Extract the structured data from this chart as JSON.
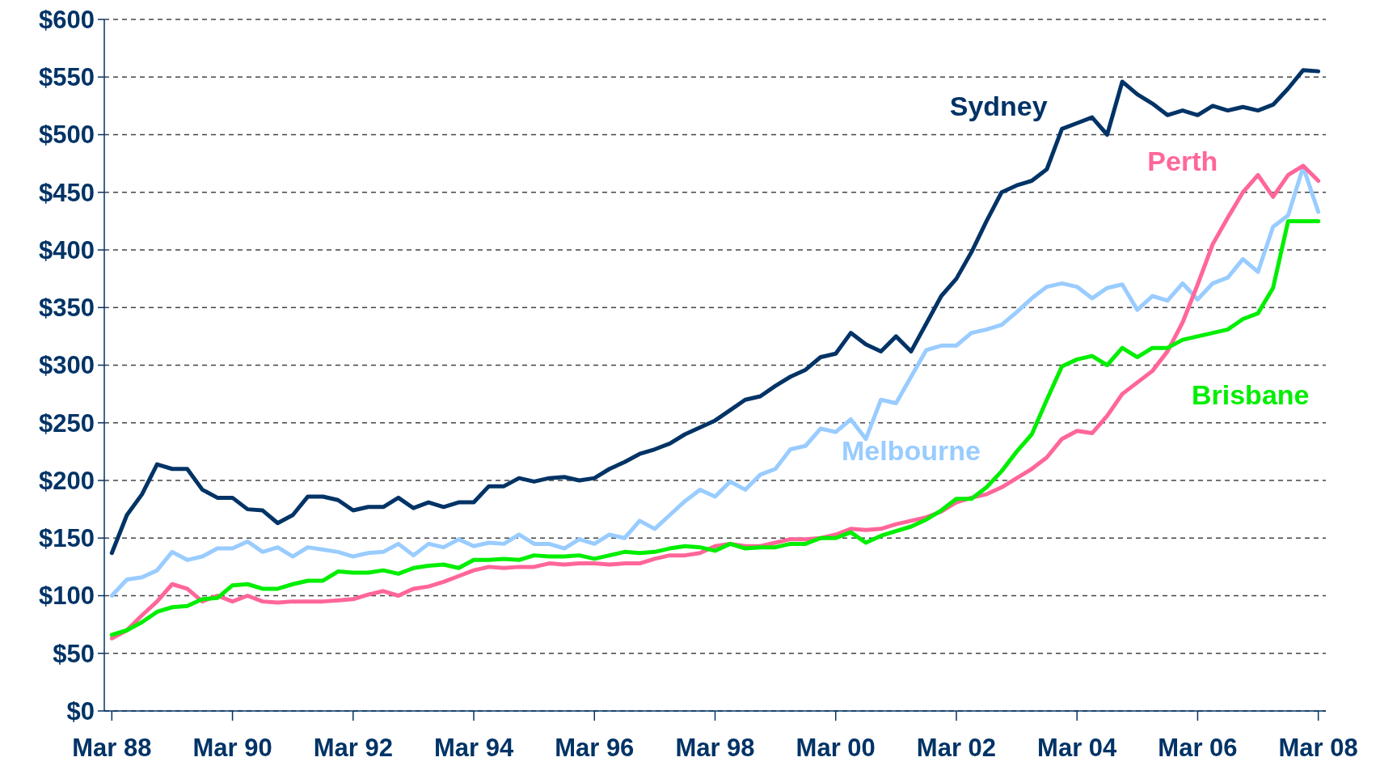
{
  "chart_data": {
    "type": "line",
    "categories": [
      "Mar 88",
      null,
      null,
      null,
      null,
      null,
      null,
      null,
      "Mar 90",
      null,
      null,
      null,
      null,
      null,
      null,
      null,
      "Mar 92",
      null,
      null,
      null,
      null,
      null,
      null,
      null,
      "Mar 94",
      null,
      null,
      null,
      null,
      null,
      null,
      null,
      "Mar 96",
      null,
      null,
      null,
      null,
      null,
      null,
      null,
      "Mar 98",
      null,
      null,
      null,
      null,
      null,
      null,
      null,
      "Mar 00",
      null,
      null,
      null,
      null,
      null,
      null,
      null,
      "Mar 02",
      null,
      null,
      null,
      null,
      null,
      null,
      null,
      "Mar 04",
      null,
      null,
      null,
      null,
      null,
      null,
      null,
      "Mar 06",
      null,
      null,
      null,
      null,
      null,
      null,
      null,
      "Mar 08"
    ],
    "ylim": [
      0,
      600
    ],
    "yticks": [
      {
        "value": 0,
        "label": "$0"
      },
      {
        "value": 50,
        "label": "$50"
      },
      {
        "value": 100,
        "label": "$100"
      },
      {
        "value": 150,
        "label": "$150"
      },
      {
        "value": 200,
        "label": "$200"
      },
      {
        "value": 250,
        "label": "$250"
      },
      {
        "value": 300,
        "label": "$300"
      },
      {
        "value": 350,
        "label": "$350"
      },
      {
        "value": 400,
        "label": "$400"
      },
      {
        "value": 450,
        "label": "$450"
      },
      {
        "value": 500,
        "label": "$500"
      },
      {
        "value": 550,
        "label": "$550"
      },
      {
        "value": 600,
        "label": "$600"
      }
    ],
    "grid": "y",
    "marker": "none",
    "line_style": "solid",
    "series": [
      {
        "name": "Sydney",
        "color": "#003366",
        "values": [
          137,
          170,
          188,
          214,
          210,
          210,
          192,
          185,
          185,
          175,
          174,
          163,
          170,
          186,
          186,
          183,
          174,
          177,
          177,
          185,
          176,
          181,
          177,
          181,
          181,
          195,
          195,
          202,
          199,
          202,
          203,
          200,
          202,
          210,
          216,
          223,
          227,
          232,
          240,
          246,
          252,
          261,
          270,
          273,
          282,
          290,
          296,
          307,
          310,
          328,
          318,
          312,
          325,
          312,
          336,
          360,
          375,
          398,
          425,
          450,
          456,
          460,
          470,
          505,
          510,
          515,
          500,
          546,
          535,
          527,
          517,
          521,
          517,
          525,
          521,
          524,
          521,
          526,
          540,
          556,
          555
        ]
      },
      {
        "name": "Melbourne",
        "color": "#99ccff",
        "values": [
          100,
          114,
          116,
          122,
          138,
          131,
          134,
          141,
          141,
          147,
          138,
          142,
          134,
          142,
          140,
          138,
          134,
          137,
          138,
          145,
          135,
          145,
          142,
          149,
          143,
          146,
          145,
          153,
          145,
          145,
          141,
          149,
          145,
          153,
          150,
          165,
          158,
          170,
          182,
          192,
          186,
          199,
          192,
          205,
          210,
          227,
          230,
          245,
          242,
          253,
          236,
          270,
          267,
          290,
          313,
          317,
          317,
          328,
          331,
          335,
          346,
          358,
          368,
          371,
          368,
          358,
          367,
          370,
          348,
          360,
          356,
          371,
          357,
          371,
          376,
          392,
          381,
          420,
          430,
          472,
          433
        ]
      },
      {
        "name": "Perth",
        "color": "#ff6699",
        "values": [
          63,
          70,
          83,
          95,
          110,
          106,
          95,
          100,
          95,
          100,
          95,
          94,
          95,
          95,
          95,
          96,
          97,
          101,
          104,
          100,
          106,
          108,
          112,
          117,
          122,
          125,
          124,
          125,
          125,
          128,
          127,
          128,
          128,
          127,
          128,
          128,
          132,
          135,
          135,
          137,
          143,
          145,
          143,
          143,
          146,
          149,
          149,
          150,
          153,
          158,
          157,
          158,
          162,
          165,
          168,
          173,
          181,
          185,
          188,
          194,
          202,
          210,
          220,
          236,
          243,
          241,
          256,
          275,
          285,
          295,
          312,
          337,
          370,
          405,
          428,
          450,
          465,
          446,
          465,
          473,
          460
        ]
      },
      {
        "name": "Brisbane",
        "color": "#00ee00",
        "values": [
          66,
          70,
          77,
          86,
          90,
          91,
          97,
          98,
          109,
          110,
          106,
          106,
          110,
          113,
          113,
          121,
          120,
          120,
          122,
          119,
          124,
          126,
          127,
          124,
          131,
          131,
          132,
          131,
          135,
          134,
          134,
          135,
          132,
          135,
          138,
          137,
          138,
          141,
          143,
          142,
          139,
          145,
          141,
          142,
          142,
          145,
          145,
          150,
          150,
          155,
          146,
          152,
          156,
          160,
          166,
          174,
          184,
          184,
          194,
          208,
          225,
          240,
          270,
          299,
          305,
          308,
          300,
          315,
          307,
          315,
          315,
          322,
          325,
          328,
          331,
          340,
          345,
          367,
          425,
          425,
          425
        ]
      }
    ]
  }
}
